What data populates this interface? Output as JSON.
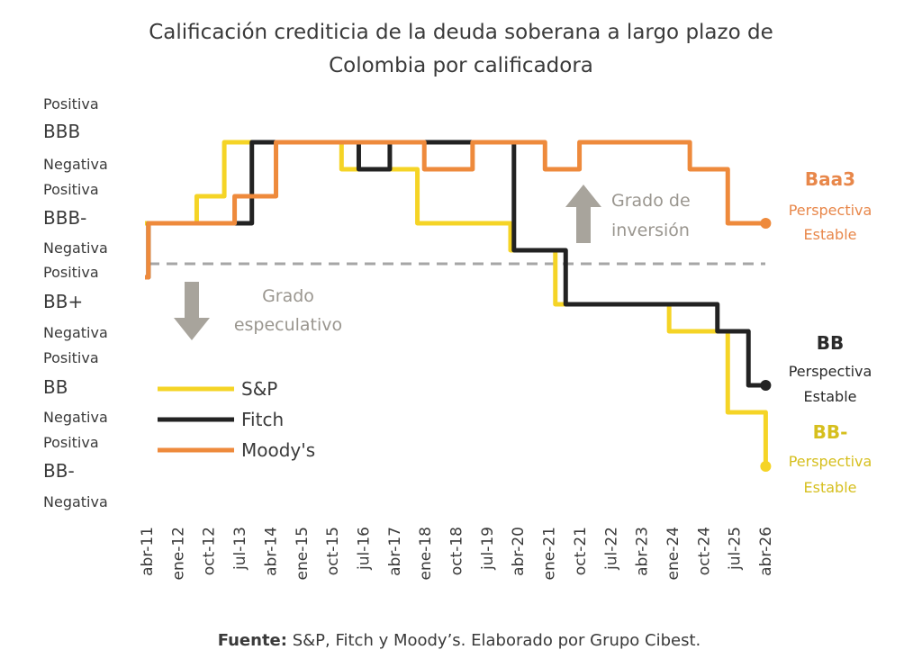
{
  "chart_data": {
    "type": "line",
    "step": true,
    "title_lines": [
      "Calificación crediticia de la deuda soberana a largo plazo de",
      "Colombia por calificadora"
    ],
    "x_unit": "months since abr-11",
    "x_ticks": [
      "abr-11",
      "ene-12",
      "oct-12",
      "jul-13",
      "abr-14",
      "ene-15",
      "oct-15",
      "jul-16",
      "abr-17",
      "ene-18",
      "oct-18",
      "jul-19",
      "abr-20",
      "ene-21",
      "oct-21",
      "jul-22",
      "abr-23",
      "ene-24",
      "oct-24",
      "jul-25",
      "abr-26"
    ],
    "xlim": [
      0,
      180
    ],
    "y_scale_note": "1=BB- Negativa ... 15=BBB Positiva",
    "ylim": [
      1,
      15
    ],
    "y_ticks": [
      {
        "v": 15,
        "label": "Positiva",
        "kind": "outlook"
      },
      {
        "v": 14,
        "label": "BBB",
        "kind": "rating"
      },
      {
        "v": 13,
        "label": "Negativa",
        "kind": "outlook"
      },
      {
        "v": 12,
        "label": "Positiva",
        "kind": "outlook"
      },
      {
        "v": 11,
        "label": "BBB-",
        "kind": "rating"
      },
      {
        "v": 10,
        "label": "Negativa",
        "kind": "outlook"
      },
      {
        "v": 9,
        "label": "Positiva",
        "kind": "outlook"
      },
      {
        "v": 8,
        "label": "BB+",
        "kind": "rating"
      },
      {
        "v": 7,
        "label": "Negativa",
        "kind": "outlook"
      },
      {
        "v": 6,
        "label": "Positiva",
        "kind": "outlook"
      },
      {
        "v": 5,
        "label": "BB",
        "kind": "rating"
      },
      {
        "v": 4,
        "label": "Negativa",
        "kind": "outlook"
      },
      {
        "v": 3,
        "label": "Positiva",
        "kind": "outlook"
      },
      {
        "v": 2,
        "label": "BB-",
        "kind": "rating"
      },
      {
        "v": 1,
        "label": "Negativa",
        "kind": "outlook"
      }
    ],
    "threshold": {
      "value": 9.5,
      "style": "dashed"
    },
    "series": [
      {
        "name": "S&P",
        "color": "#f5d426",
        "points": [
          [
            0,
            11
          ],
          [
            15,
            12
          ],
          [
            23,
            14
          ],
          [
            57,
            13
          ],
          [
            79,
            11
          ],
          [
            106,
            10
          ],
          [
            119,
            8
          ],
          [
            152,
            7
          ],
          [
            169,
            4
          ],
          [
            180,
            2
          ]
        ],
        "end_label": {
          "rating": "BB-",
          "outlook": "Perspectiva",
          "outlook2": "Estable",
          "color": "#d6bf1e"
        }
      },
      {
        "name": "Fitch",
        "color": "#222222",
        "points": [
          [
            0,
            9
          ],
          [
            1,
            11
          ],
          [
            31,
            14
          ],
          [
            62,
            13
          ],
          [
            71,
            14
          ],
          [
            107,
            10
          ],
          [
            122,
            8
          ],
          [
            166,
            7
          ],
          [
            175,
            5
          ],
          [
            180,
            5
          ]
        ],
        "end_label": {
          "rating": "BB",
          "outlook": "Perspectiva",
          "outlook2": "Estable",
          "color": "#2a2a2a"
        }
      },
      {
        "name": "Moody's",
        "color": "#ee8a3c",
        "points": [
          [
            0,
            9
          ],
          [
            1,
            11
          ],
          [
            26,
            12
          ],
          [
            38,
            14
          ],
          [
            81,
            13
          ],
          [
            95,
            14
          ],
          [
            116,
            13
          ],
          [
            126,
            14
          ],
          [
            158,
            13
          ],
          [
            169,
            11
          ],
          [
            180,
            11
          ]
        ],
        "end_label": {
          "rating": "Baa3",
          "outlook": "Perspectiva",
          "outlook2": "Estable",
          "color": "#e8874a"
        }
      }
    ],
    "legend": {
      "placement": "bottom-left",
      "entries": [
        "S&P",
        "Fitch",
        "Moody's"
      ]
    },
    "annotations": {
      "investment": [
        "Grado de",
        "inversión"
      ],
      "speculative": [
        "Grado",
        "especulativo"
      ]
    },
    "footer": {
      "bold": "Fuente:",
      "text": " S&P, Fitch y Moody’s. Elaborado por Grupo Cibest."
    }
  }
}
